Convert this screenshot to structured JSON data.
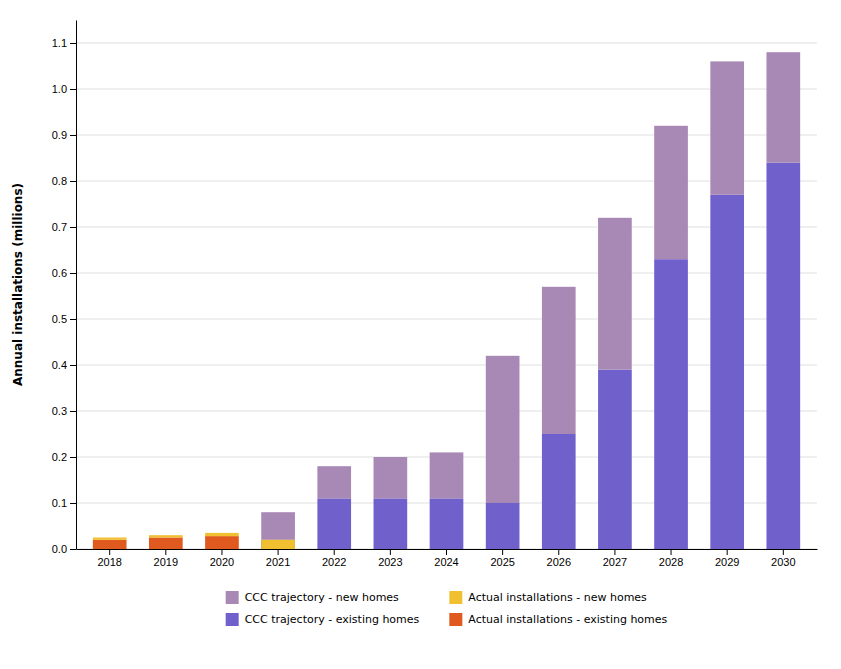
{
  "chart_data": {
    "type": "bar",
    "stacked": true,
    "categories": [
      "2018",
      "2019",
      "2020",
      "2021",
      "2022",
      "2023",
      "2024",
      "2025",
      "2026",
      "2027",
      "2028",
      "2029",
      "2030"
    ],
    "series": [
      {
        "name": "CCC trajectory - new homes",
        "color": "#a888b5",
        "values": [
          0.0,
          0.0,
          0.0,
          0.06,
          0.07,
          0.09,
          0.1,
          0.32,
          0.32,
          0.33,
          0.29,
          0.29,
          0.24
        ]
      },
      {
        "name": "CCC trajectory - existing homes",
        "color": "#7060cc",
        "values": [
          0.0,
          0.0,
          0.0,
          0.02,
          0.11,
          0.11,
          0.11,
          0.1,
          0.25,
          0.39,
          0.63,
          0.77,
          0.84
        ]
      },
      {
        "name": "Actual installations - new homes",
        "color": "#f0c030",
        "values": [
          0.005,
          0.005,
          0.007,
          0.02,
          0.0,
          0.0,
          0.0,
          0.0,
          0.0,
          0.0,
          0.0,
          0.0,
          0.0
        ]
      },
      {
        "name": "Actual installations - existing homes",
        "color": "#e05a20",
        "values": [
          0.02,
          0.025,
          0.028,
          0.0,
          0.0,
          0.0,
          0.0,
          0.0,
          0.0,
          0.0,
          0.0,
          0.0,
          0.0
        ]
      }
    ],
    "ylabel": "Annual installations (millions)",
    "ylim": [
      0,
      1.15
    ],
    "yticks": [
      {
        "value": 0.0,
        "label": "0.0"
      },
      0.1,
      0.2,
      0.3,
      0.4,
      0.5,
      0.6,
      0.7,
      0.8,
      0.9,
      {
        "value": 1.0,
        "label": "1.0"
      },
      1.1
    ],
    "grid": true,
    "legend": "bottom"
  }
}
